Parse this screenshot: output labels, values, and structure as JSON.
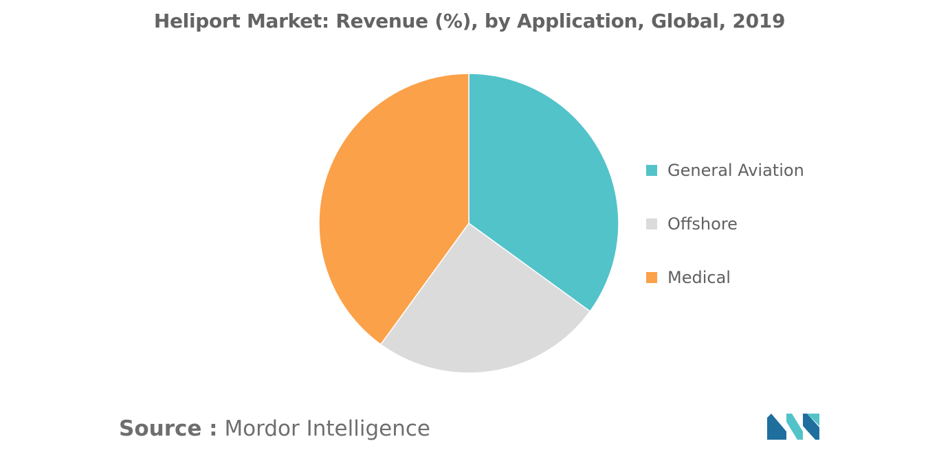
{
  "chart_data": {
    "type": "pie",
    "title": "Heliport Market: Revenue (%), by Application, Global, 2019",
    "categories": [
      "General Aviation",
      "Offshore",
      "Medical"
    ],
    "values": [
      35,
      25,
      40
    ],
    "colors": [
      "#52c3c9",
      "#dbdbdb",
      "#fba149"
    ],
    "legend_position": "right",
    "start_angle": "12 o'clock",
    "direction": "clockwise"
  },
  "source": {
    "prefix": "Source :",
    "text": "Mordor Intelligence"
  },
  "logo": {
    "icon": "mordor-intelligence-logo-icon",
    "colors": [
      "#1f6f9e",
      "#52c3c9"
    ]
  }
}
